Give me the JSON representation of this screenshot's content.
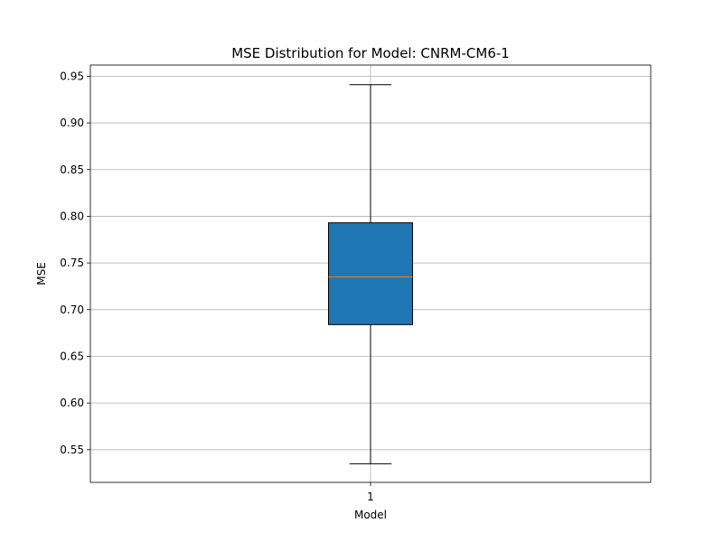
{
  "chart_data": {
    "type": "box",
    "title": "MSE Distribution for Model: CNRM-CM6-1",
    "xlabel": "Model",
    "ylabel": "MSE",
    "categories": [
      "1"
    ],
    "boxes": [
      {
        "category": "1",
        "whisker_low": 0.535,
        "q1": 0.684,
        "median": 0.735,
        "q3": 0.793,
        "whisker_high": 0.941
      }
    ],
    "ylim": [
      0.515,
      0.962
    ],
    "yticks": [
      0.55,
      0.6,
      0.65,
      0.7,
      0.75,
      0.8,
      0.85,
      0.9,
      0.95
    ],
    "ytick_labels": [
      "0.55",
      "0.60",
      "0.65",
      "0.70",
      "0.75",
      "0.80",
      "0.85",
      "0.90",
      "0.95"
    ],
    "grid": true,
    "colors": {
      "box_fill": "#1f77b4",
      "median_line": "#ff7f0e",
      "grid": "#b0b0b0",
      "axes": "#000000"
    }
  }
}
